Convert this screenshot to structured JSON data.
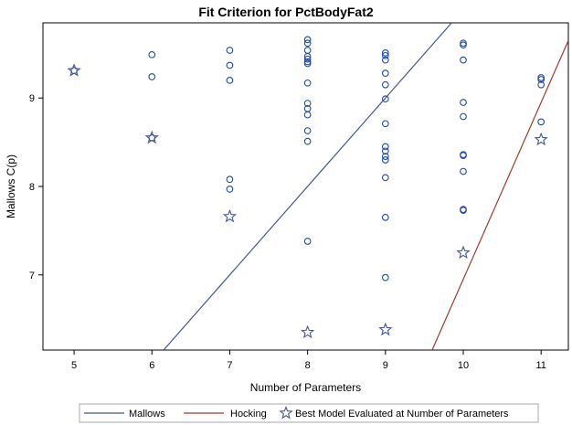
{
  "chart_data": {
    "type": "scatter",
    "title": "Fit Criterion for PctBodyFat2",
    "xlabel": "Number of Parameters",
    "ylabel": "Mallows C(p)",
    "xlim": [
      4.6,
      11.35
    ],
    "ylim": [
      6.15,
      9.85
    ],
    "xticks": [
      "5",
      "6",
      "7",
      "8",
      "9",
      "10",
      "11"
    ],
    "yticks": [
      "7",
      "8",
      "9"
    ],
    "grid": false,
    "legend_position": "bottom",
    "legend": [
      "Mallows",
      "Hocking",
      "Best Model Evaluated at Number of Parameters"
    ],
    "colors": {
      "points": "#1f4aa8",
      "mallows": "#445694",
      "hocking": "#a23a2a",
      "best": "#445694"
    },
    "points": {
      "5": [
        9.31
      ],
      "6": [
        9.49,
        9.24,
        8.55
      ],
      "7": [
        9.54,
        9.37,
        9.2,
        8.08,
        7.97
      ],
      "8": [
        9.66,
        9.62,
        9.54,
        9.47,
        9.44,
        9.41,
        9.39,
        9.17,
        8.94,
        8.88,
        8.81,
        8.63,
        8.51,
        7.38
      ],
      "9": [
        9.51,
        9.48,
        9.43,
        9.28,
        9.15,
        8.99,
        8.71,
        8.45,
        8.4,
        8.34,
        8.3,
        8.1,
        7.65,
        6.97
      ],
      "10": [
        9.62,
        9.6,
        9.43,
        8.95,
        8.79,
        8.36,
        8.35,
        8.17,
        7.74,
        7.73
      ],
      "11": [
        9.23,
        9.21,
        9.15,
        8.73
      ]
    },
    "best": [
      {
        "x": 5,
        "y": 9.31
      },
      {
        "x": 6,
        "y": 8.55
      },
      {
        "x": 7,
        "y": 7.66
      },
      {
        "x": 8,
        "y": 6.35
      },
      {
        "x": 9,
        "y": 6.38
      },
      {
        "x": 10,
        "y": 7.25
      },
      {
        "x": 11,
        "y": 8.53
      }
    ],
    "mallows_line": [
      [
        6.15,
        6.15
      ],
      [
        9.85,
        9.85
      ]
    ],
    "hocking_line": [
      [
        9.6,
        6.15
      ],
      [
        11.35,
        9.65
      ]
    ]
  }
}
